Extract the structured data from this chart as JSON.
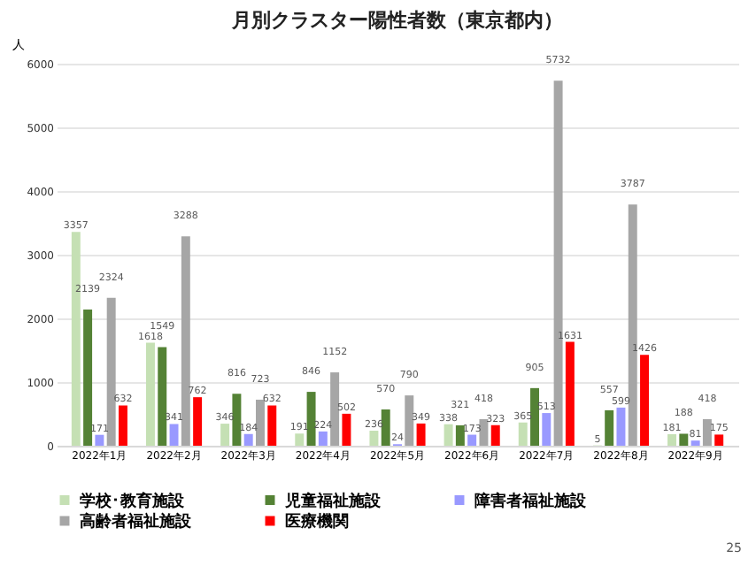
{
  "chart_data": {
    "type": "bar",
    "title": "月別クラスター陽性者数（東京都内）",
    "ylabel": "人",
    "categories": [
      "2022年1月",
      "2022年2月",
      "2022年3月",
      "2022年4月",
      "2022年5月",
      "2022年6月",
      "2022年7月",
      "2022年8月",
      "2022年9月"
    ],
    "series": [
      {
        "name": "学校･教育施設",
        "color": "#c5e0b4",
        "values": [
          3357,
          1618,
          346,
          191,
          236,
          338,
          365,
          5,
          181
        ]
      },
      {
        "name": "児童福祉施設",
        "color": "#548235",
        "values": [
          2139,
          1549,
          816,
          846,
          570,
          321,
          905,
          557,
          188
        ]
      },
      {
        "name": "障害者福祉施設",
        "color": "#9999ff",
        "values": [
          171,
          341,
          184,
          224,
          24,
          173,
          513,
          599,
          81
        ]
      },
      {
        "name": "高齢者福祉施設",
        "color": "#a6a6a6",
        "values": [
          2324,
          3288,
          723,
          1152,
          790,
          418,
          5732,
          3787,
          418
        ]
      },
      {
        "name": "医療機関",
        "color": "#ff0000",
        "values": [
          632,
          762,
          632,
          502,
          349,
          323,
          1631,
          1426,
          175
        ]
      }
    ],
    "ylim": [
      0,
      6000
    ],
    "yticks": [
      0,
      1000,
      2000,
      3000,
      4000,
      5000,
      6000
    ],
    "grid": "y",
    "legend": "bottom",
    "data_labels": true,
    "annotations": [
      "25"
    ]
  }
}
